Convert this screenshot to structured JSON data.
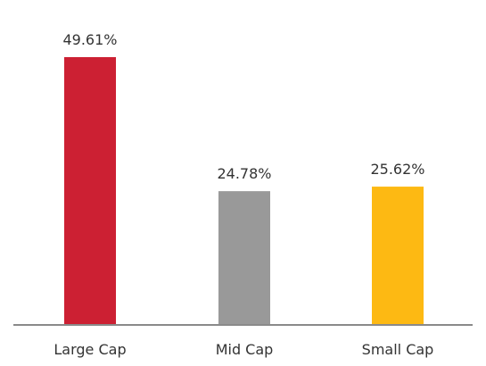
{
  "chart_data": {
    "type": "bar",
    "categories": [
      "Large Cap",
      "Mid Cap",
      "Small Cap"
    ],
    "values": [
      49.61,
      24.78,
      25.62
    ],
    "value_labels": [
      "49.61%",
      "24.78%",
      "25.62%"
    ],
    "colors": [
      "#cc2033",
      "#999999",
      "#fdb913"
    ],
    "axis_color": "#8a8a8a",
    "ylim": [
      0,
      49.61
    ],
    "grid": false,
    "title": "",
    "xlabel": "",
    "ylabel": ""
  }
}
